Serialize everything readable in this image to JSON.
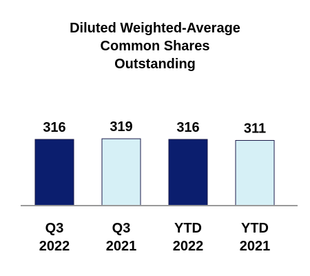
{
  "title_lines": [
    "Diluted Weighted-Average",
    "Common Shares",
    "Outstanding"
  ],
  "chart_data": {
    "type": "bar",
    "title": "Diluted Weighted-Average Common Shares Outstanding",
    "categories": [
      [
        "Q3",
        "2022"
      ],
      [
        "Q3",
        "2021"
      ],
      [
        "YTD",
        "2022"
      ],
      [
        "YTD",
        "2021"
      ]
    ],
    "values": [
      316,
      319,
      316,
      311
    ],
    "data_labels": [
      "316",
      "319",
      "316",
      "311"
    ],
    "bar_colors": [
      "#0b1e6e",
      "#d6f0f6",
      "#0b1e6e",
      "#d6f0f6"
    ],
    "bar_stroke": "#1a1a4a",
    "axis_color": "#999999",
    "grid": false,
    "legend": "none",
    "xlabel": "",
    "ylabel": ""
  }
}
